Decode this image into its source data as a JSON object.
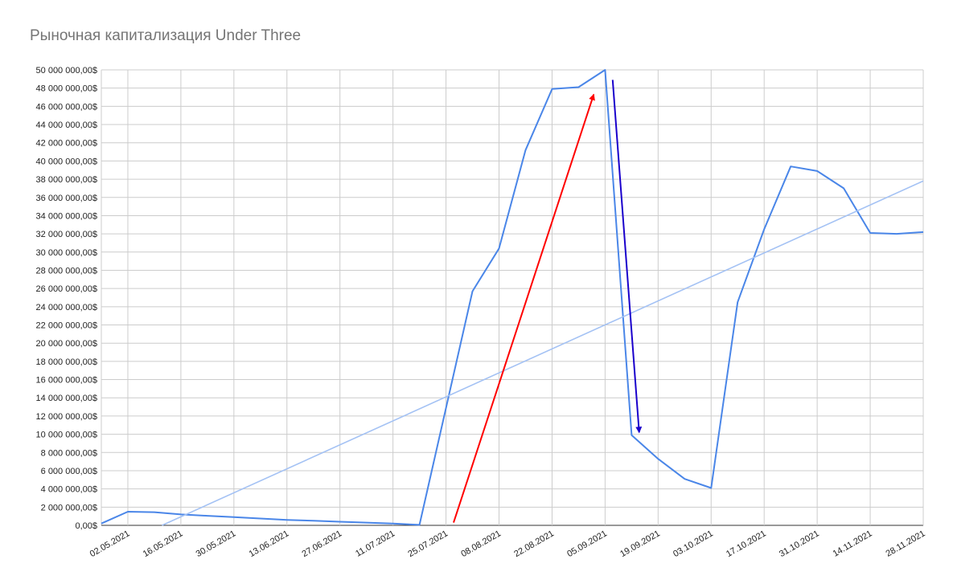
{
  "chart_data": {
    "type": "line",
    "title": "Рыночная капитализация Under Three",
    "xlabel": "",
    "ylabel": "",
    "ylim": [
      0,
      50000000
    ],
    "ytick_step": 2000000,
    "x_start": "2021-04-25",
    "x_end": "2021-11-28",
    "grid": true,
    "legend": "none",
    "y_tick_labels": [
      "0,00$",
      "2 000 000,00$",
      "4 000 000,00$",
      "6 000 000,00$",
      "8 000 000,00$",
      "10 000 000,00$",
      "12 000 000,00$",
      "14 000 000,00$",
      "16 000 000,00$",
      "18 000 000,00$",
      "20 000 000,00$",
      "22 000 000,00$",
      "24 000 000,00$",
      "26 000 000,00$",
      "28 000 000,00$",
      "30 000 000,00$",
      "32 000 000,00$",
      "34 000 000,00$",
      "36 000 000,00$",
      "38 000 000,00$",
      "40 000 000,00$",
      "42 000 000,00$",
      "44 000 000,00$",
      "46 000 000,00$",
      "48 000 000,00$",
      "50 000 000,00$"
    ],
    "x_tick_labels": [
      "02.05.2021",
      "16.05.2021",
      "30.05.2021",
      "13.06.2021",
      "27.06.2021",
      "11.07.2021",
      "25.07.2021",
      "08.08.2021",
      "22.08.2021",
      "05.09.2021",
      "19.09.2021",
      "03.10.2021",
      "17.10.2021",
      "31.10.2021",
      "14.11.2021",
      "28.11.2021"
    ],
    "x_ticks": [
      "2021-05-02",
      "2021-05-16",
      "2021-05-30",
      "2021-06-13",
      "2021-06-27",
      "2021-07-11",
      "2021-07-25",
      "2021-08-08",
      "2021-08-22",
      "2021-09-05",
      "2021-09-19",
      "2021-10-03",
      "2021-10-17",
      "2021-10-31",
      "2021-11-14",
      "2021-11-28"
    ],
    "series": [
      {
        "color": "#4a86e8",
        "points": [
          [
            "2021-04-25",
            200000
          ],
          [
            "2021-05-02",
            1500000
          ],
          [
            "2021-05-09",
            1450000
          ],
          [
            "2021-05-16",
            1200000
          ],
          [
            "2021-05-23",
            1050000
          ],
          [
            "2021-05-30",
            900000
          ],
          [
            "2021-06-06",
            750000
          ],
          [
            "2021-06-13",
            600000
          ],
          [
            "2021-06-20",
            500000
          ],
          [
            "2021-06-27",
            400000
          ],
          [
            "2021-07-04",
            300000
          ],
          [
            "2021-07-11",
            200000
          ],
          [
            "2021-07-18",
            50000
          ],
          [
            "2021-08-01",
            25700000
          ],
          [
            "2021-08-08",
            30400000
          ],
          [
            "2021-08-15",
            41200000
          ],
          [
            "2021-08-22",
            47900000
          ],
          [
            "2021-08-29",
            48100000
          ],
          [
            "2021-09-05",
            50000000
          ],
          [
            "2021-09-12",
            9900000
          ],
          [
            "2021-09-19",
            7300000
          ],
          [
            "2021-09-26",
            5100000
          ],
          [
            "2021-10-03",
            4100000
          ],
          [
            "2021-10-10",
            24500000
          ],
          [
            "2021-10-17",
            32500000
          ],
          [
            "2021-10-24",
            39400000
          ],
          [
            "2021-10-31",
            38900000
          ],
          [
            "2021-11-07",
            37000000
          ],
          [
            "2021-11-14",
            32100000
          ],
          [
            "2021-11-21",
            32000000
          ],
          [
            "2021-11-28",
            32200000
          ]
        ]
      },
      {
        "color": "#a4c2f4",
        "trendline": true,
        "points": [
          [
            "2021-05-11",
            0
          ],
          [
            "2021-11-28",
            37800000
          ]
        ]
      }
    ],
    "annotations": [
      {
        "type": "arrow",
        "color": "#ff0000",
        "from": [
          "2021-07-27",
          300000
        ],
        "to": [
          "2021-09-02",
          47300000
        ]
      },
      {
        "type": "arrow",
        "color": "#1a00cc",
        "from": [
          "2021-09-07",
          48900000
        ],
        "to": [
          "2021-09-14",
          10200000
        ]
      }
    ]
  }
}
